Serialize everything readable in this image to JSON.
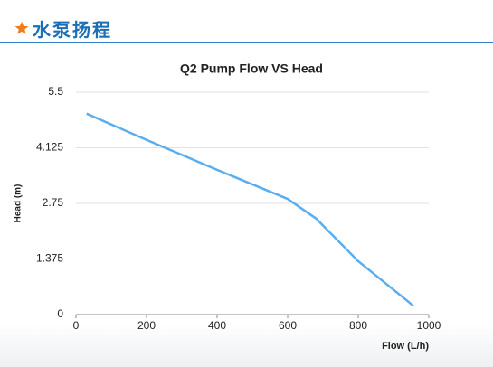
{
  "header": {
    "title": "水泵扬程"
  },
  "chart_data": {
    "type": "line",
    "title": "Q2 Pump Flow VS Head",
    "x_label": "Flow (L/h)",
    "y_label": "Head (m)",
    "x": [
      30,
      200,
      400,
      600,
      680,
      800,
      956
    ],
    "series": [
      {
        "name": "Head",
        "color": "#5aaef0",
        "values": [
          4.97,
          4.32,
          3.58,
          2.86,
          2.38,
          1.32,
          0.22
        ]
      }
    ],
    "xlim": [
      0,
      1000
    ],
    "xticks": [
      0,
      200,
      400,
      600,
      800,
      1000
    ],
    "ylim": [
      0,
      5.5
    ],
    "yticks": [
      0,
      1.375,
      2.75,
      4.125,
      5.5
    ],
    "grid": true
  }
}
